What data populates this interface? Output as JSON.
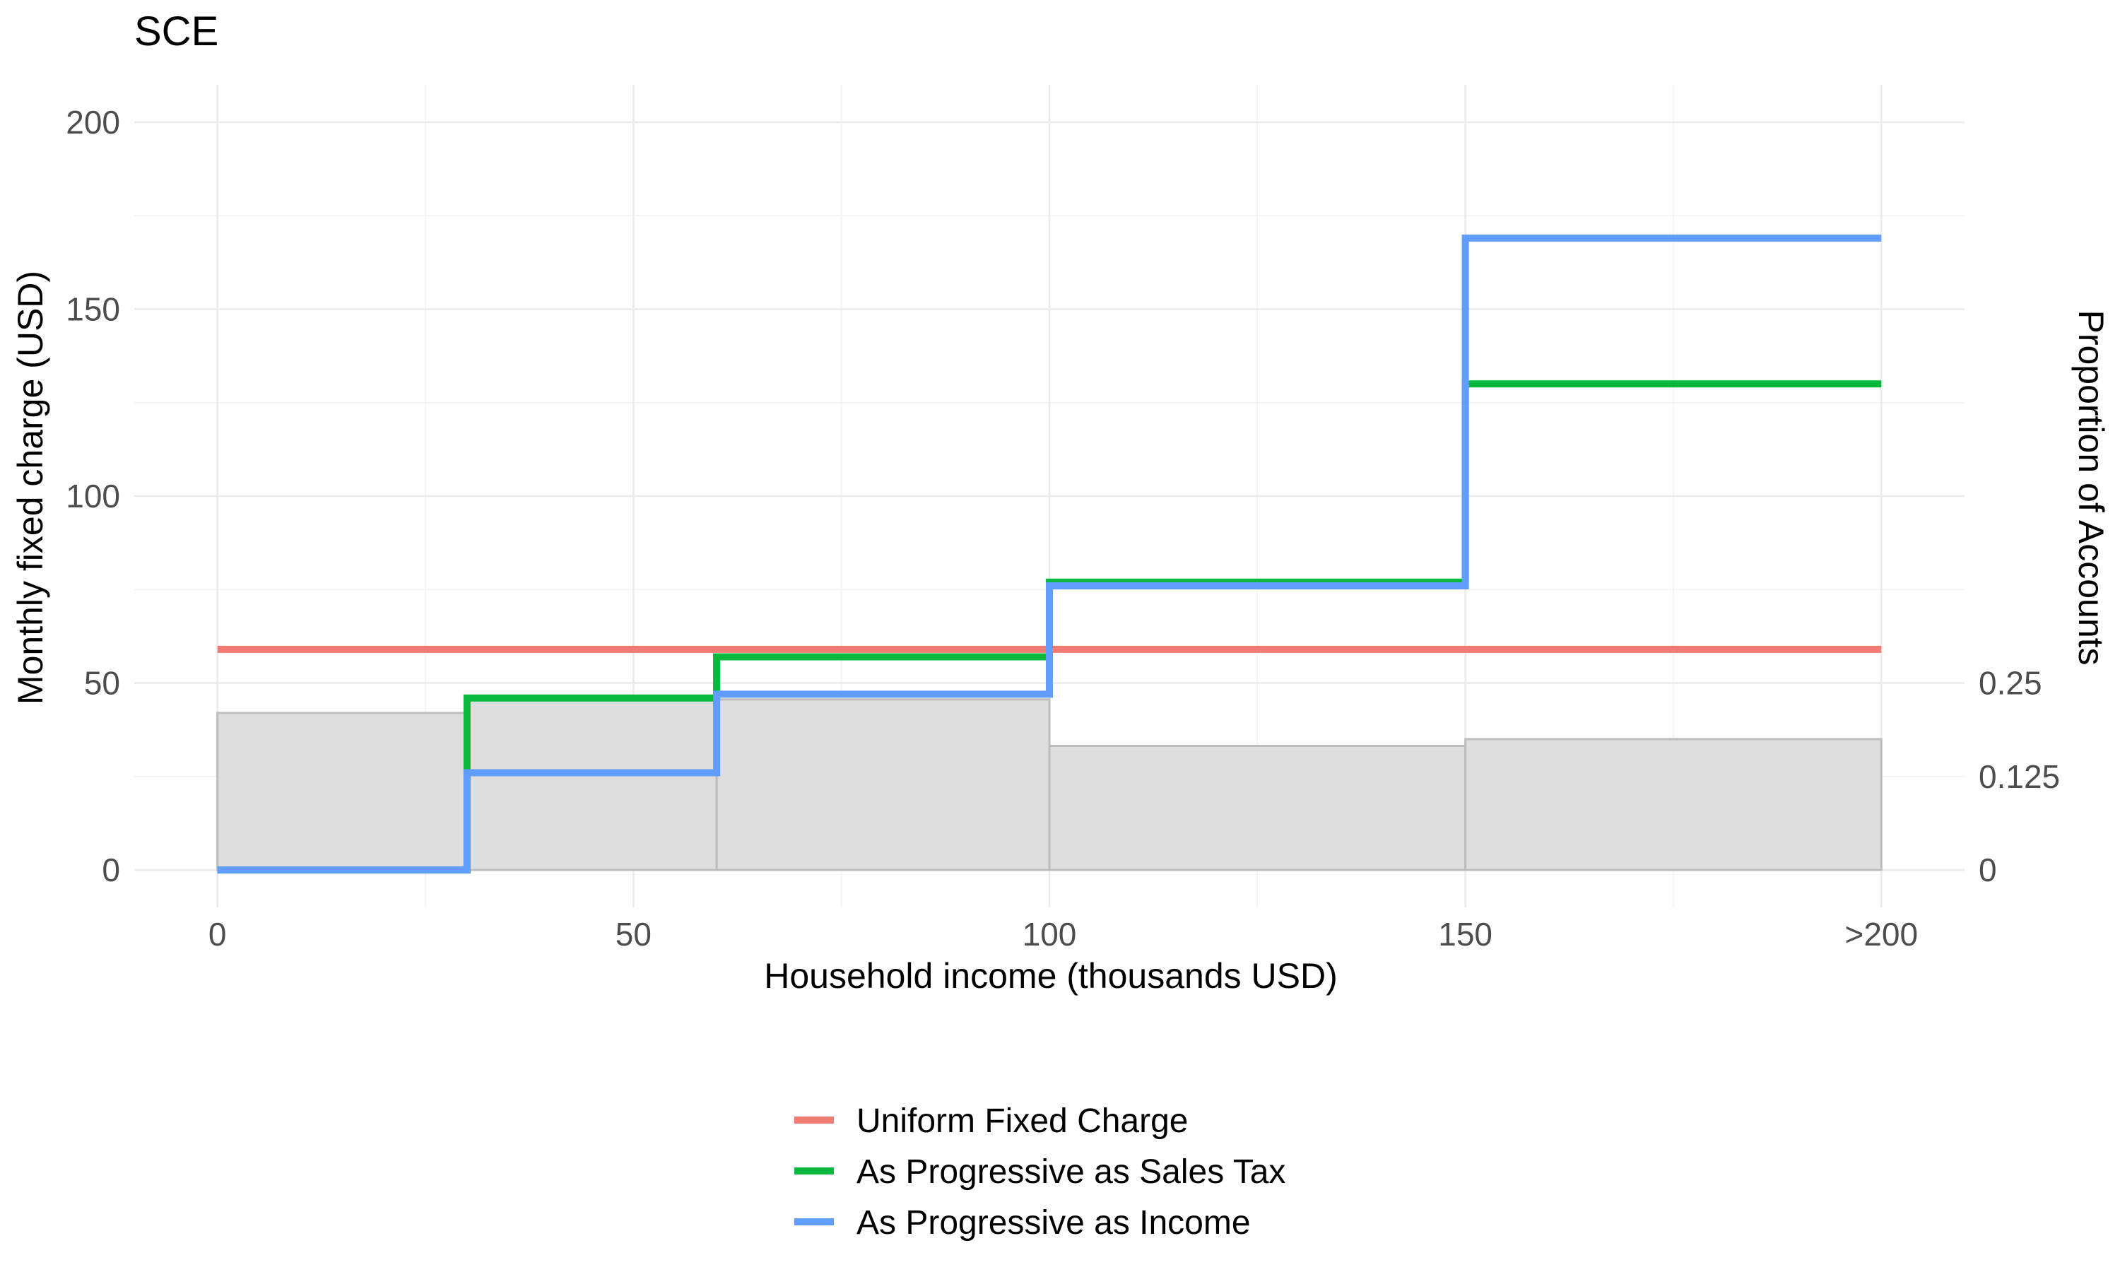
{
  "chart_data": {
    "type": "line",
    "subtype": "step",
    "title": "SCE",
    "xlabel": "Household income (thousands USD)",
    "ylabel": "Monthly fixed charge (USD)",
    "y2label": "Proportion of Accounts",
    "xlim": [
      -10,
      210
    ],
    "ylim": [
      -10,
      210
    ],
    "x_ticks": [
      {
        "value": 0,
        "label": "0"
      },
      {
        "value": 50,
        "label": "50"
      },
      {
        "value": 100,
        "label": "100"
      },
      {
        "value": 150,
        "label": "150"
      },
      {
        "value": 200,
        "label": ">200"
      }
    ],
    "y_ticks": [
      {
        "value": 0,
        "label": "0"
      },
      {
        "value": 50,
        "label": "50"
      },
      {
        "value": 100,
        "label": "100"
      },
      {
        "value": 150,
        "label": "150"
      },
      {
        "value": 200,
        "label": "200"
      }
    ],
    "y2_ticks": [
      {
        "value": 0,
        "label": "0"
      },
      {
        "value": 0.125,
        "label": "0.125"
      },
      {
        "value": 0.25,
        "label": "0.25"
      }
    ],
    "y2_scale": 200,
    "grid": true,
    "legend_position": "bottom",
    "histogram": {
      "color": "#dedede",
      "edge_color": "#bdbdbd",
      "bins": [
        {
          "x0": 0,
          "x1": 30,
          "value": 0.21
        },
        {
          "x0": 30,
          "x1": 60,
          "value": 0.228
        },
        {
          "x0": 60,
          "x1": 100,
          "value": 0.228
        },
        {
          "x0": 100,
          "x1": 150,
          "value": 0.166
        },
        {
          "x0": 150,
          "x1": 200,
          "value": 0.175
        }
      ]
    },
    "series": [
      {
        "name": "Uniform Fixed Charge",
        "color": "#f07b72",
        "x": [
          0,
          200
        ],
        "y": [
          59,
          59
        ]
      },
      {
        "name": "As Progressive as Sales Tax",
        "color": "#0bb83e",
        "x": [
          0,
          30,
          30,
          60,
          60,
          100,
          100,
          150,
          150,
          200
        ],
        "y": [
          0,
          0,
          46,
          46,
          57,
          57,
          77,
          77,
          130,
          130
        ]
      },
      {
        "name": "As Progressive as Income",
        "color": "#619cff",
        "x": [
          0,
          30,
          30,
          60,
          60,
          100,
          100,
          150,
          150,
          200
        ],
        "y": [
          0,
          0,
          26,
          26,
          47,
          47,
          76,
          76,
          169,
          169
        ]
      }
    ]
  }
}
